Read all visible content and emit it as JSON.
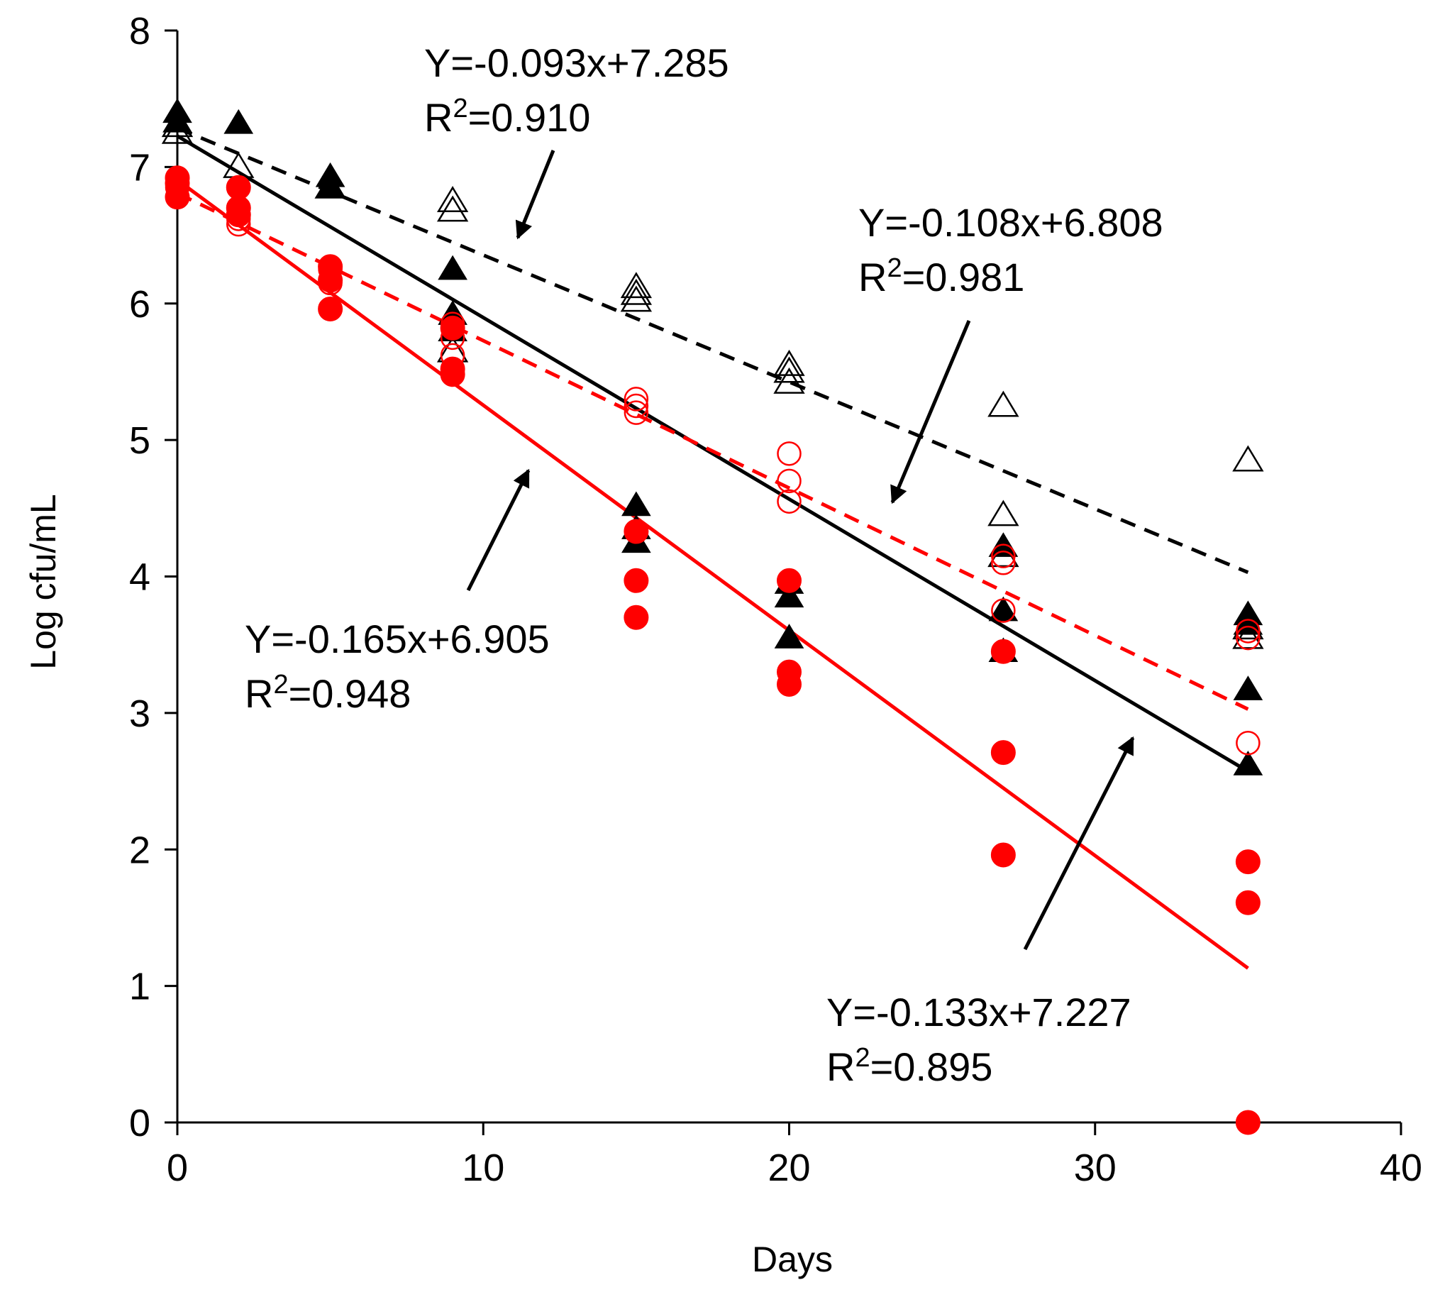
{
  "chart_data": {
    "type": "scatter",
    "title": "",
    "xlabel": "Days",
    "ylabel": "Log cfu/mL",
    "xlim": [
      0,
      40
    ],
    "ylim": [
      0,
      8
    ],
    "x_ticks": [
      "0",
      "10",
      "20",
      "30",
      "40"
    ],
    "y_ticks": [
      "0",
      "1",
      "2",
      "3",
      "4",
      "5",
      "6",
      "7",
      "8"
    ],
    "grid": false,
    "series": [
      {
        "name": "open-triangles",
        "marker": "triangle-open",
        "color": "#000000",
        "points": [
          [
            0,
            7.3
          ],
          [
            0,
            7.25
          ],
          [
            2,
            7.0
          ],
          [
            5,
            6.85
          ],
          [
            9,
            6.75
          ],
          [
            9,
            6.68
          ],
          [
            9,
            5.65
          ],
          [
            15,
            6.12
          ],
          [
            15,
            6.07
          ],
          [
            15,
            6.02
          ],
          [
            20,
            5.55
          ],
          [
            20,
            5.5
          ],
          [
            20,
            5.42
          ],
          [
            27,
            5.25
          ],
          [
            27,
            4.45
          ],
          [
            27,
            4.15
          ],
          [
            35,
            4.85
          ],
          [
            35,
            3.62
          ],
          [
            35,
            3.55
          ]
        ]
      },
      {
        "name": "filled-triangles",
        "marker": "triangle-filled",
        "color": "#000000",
        "points": [
          [
            0,
            7.4
          ],
          [
            0,
            7.33
          ],
          [
            2,
            7.32
          ],
          [
            5,
            6.93
          ],
          [
            5,
            6.85
          ],
          [
            9,
            6.25
          ],
          [
            9,
            5.92
          ],
          [
            9,
            5.8
          ],
          [
            15,
            4.52
          ],
          [
            15,
            4.35
          ],
          [
            15,
            4.25
          ],
          [
            20,
            3.95
          ],
          [
            20,
            3.85
          ],
          [
            20,
            3.55
          ],
          [
            27,
            4.22
          ],
          [
            27,
            3.75
          ],
          [
            27,
            3.45
          ],
          [
            35,
            3.72
          ],
          [
            35,
            3.65
          ],
          [
            35,
            3.17
          ],
          [
            35,
            2.62
          ]
        ]
      },
      {
        "name": "open-circles",
        "marker": "circle-open",
        "color": "#ff0000",
        "points": [
          [
            0,
            6.85
          ],
          [
            2,
            6.62
          ],
          [
            2,
            6.58
          ],
          [
            5,
            6.25
          ],
          [
            5,
            6.15
          ],
          [
            9,
            5.85
          ],
          [
            9,
            5.75
          ],
          [
            9,
            5.62
          ],
          [
            15,
            5.3
          ],
          [
            15,
            5.25
          ],
          [
            15,
            5.2
          ],
          [
            20,
            4.9
          ],
          [
            20,
            4.7
          ],
          [
            20,
            4.55
          ],
          [
            27,
            4.15
          ],
          [
            27,
            4.1
          ],
          [
            27,
            3.75
          ],
          [
            35,
            3.6
          ],
          [
            35,
            3.55
          ],
          [
            35,
            2.78
          ]
        ]
      },
      {
        "name": "filled-circles",
        "marker": "circle-filled",
        "color": "#ff0000",
        "points": [
          [
            0,
            6.92
          ],
          [
            0,
            6.88
          ],
          [
            0,
            6.78
          ],
          [
            2,
            6.85
          ],
          [
            2,
            6.7
          ],
          [
            2,
            6.65
          ],
          [
            5,
            6.27
          ],
          [
            5,
            6.17
          ],
          [
            5,
            5.96
          ],
          [
            9,
            5.82
          ],
          [
            9,
            5.52
          ],
          [
            9,
            5.48
          ],
          [
            15,
            4.33
          ],
          [
            15,
            3.97
          ],
          [
            15,
            3.7
          ],
          [
            20,
            3.97
          ],
          [
            20,
            3.3
          ],
          [
            20,
            3.21
          ],
          [
            27,
            3.45
          ],
          [
            27,
            2.71
          ],
          [
            27,
            1.96
          ],
          [
            35,
            1.91
          ],
          [
            35,
            1.61
          ],
          [
            35,
            0.0
          ]
        ]
      }
    ],
    "trendlines": [
      {
        "name": "open-triangles-fit",
        "color": "#000000",
        "style": "dashed",
        "slope": -0.093,
        "intercept": 7.285,
        "x_range": [
          0,
          35
        ]
      },
      {
        "name": "filled-triangles-fit",
        "color": "#000000",
        "style": "solid",
        "slope": -0.133,
        "intercept": 7.227,
        "x_range": [
          0,
          35
        ]
      },
      {
        "name": "open-circles-fit",
        "color": "#ff0000",
        "style": "dashed",
        "slope": -0.108,
        "intercept": 6.808,
        "x_range": [
          0,
          35
        ]
      },
      {
        "name": "filled-circles-fit",
        "color": "#ff0000",
        "style": "solid",
        "slope": -0.165,
        "intercept": 6.905,
        "x_range": [
          0,
          35
        ]
      }
    ],
    "annotations": [
      {
        "name": "annot-open-triangles",
        "equation": "Y=-0.093x+7.285",
        "r2_prefix": "R",
        "r2_sup": "2",
        "r2_value": "=0.910"
      },
      {
        "name": "annot-open-circles",
        "equation": "Y=-0.108x+6.808",
        "r2_prefix": "R",
        "r2_sup": "2",
        "r2_value": "=0.981"
      },
      {
        "name": "annot-filled-circles",
        "equation": "Y=-0.165x+6.905",
        "r2_prefix": "R",
        "r2_sup": "2",
        "r2_value": "=0.948"
      },
      {
        "name": "annot-filled-triangles",
        "equation": "Y=-0.133x+7.227",
        "r2_prefix": "R",
        "r2_sup": "2",
        "r2_value": "=0.895"
      }
    ]
  }
}
